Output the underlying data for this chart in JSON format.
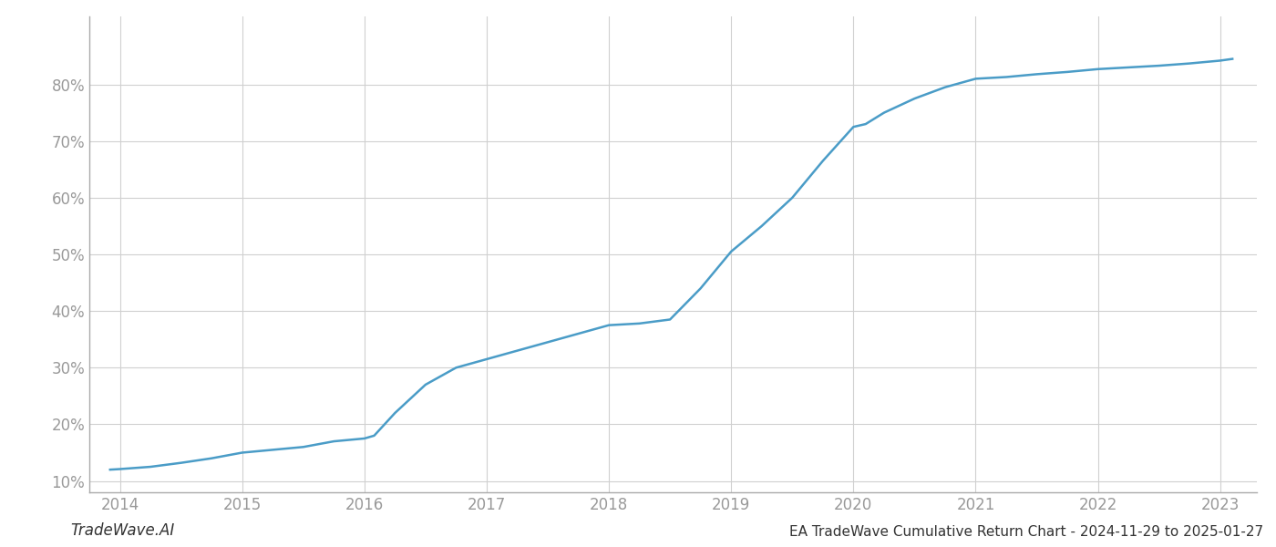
{
  "x_years": [
    2013.92,
    2014.0,
    2014.25,
    2014.5,
    2014.75,
    2015.0,
    2015.25,
    2015.5,
    2015.75,
    2016.0,
    2016.08,
    2016.25,
    2016.5,
    2016.75,
    2017.0,
    2017.25,
    2017.5,
    2017.75,
    2018.0,
    2018.25,
    2018.5,
    2018.75,
    2019.0,
    2019.25,
    2019.5,
    2019.75,
    2020.0,
    2020.1,
    2020.25,
    2020.5,
    2020.75,
    2021.0,
    2021.25,
    2021.5,
    2021.75,
    2022.0,
    2022.25,
    2022.5,
    2022.75,
    2023.0,
    2023.1
  ],
  "y_values": [
    12.0,
    12.1,
    12.5,
    13.2,
    14.0,
    15.0,
    15.5,
    16.0,
    17.0,
    17.5,
    18.0,
    22.0,
    27.0,
    30.0,
    31.5,
    33.0,
    34.5,
    36.0,
    37.5,
    37.8,
    38.5,
    44.0,
    50.5,
    55.0,
    60.0,
    66.5,
    72.5,
    73.0,
    75.0,
    77.5,
    79.5,
    81.0,
    81.3,
    81.8,
    82.2,
    82.7,
    83.0,
    83.3,
    83.7,
    84.2,
    84.5
  ],
  "line_color": "#4a9cc7",
  "line_width": 1.8,
  "background_color": "#ffffff",
  "grid_color": "#d0d0d0",
  "title": "EA TradeWave Cumulative Return Chart - 2024-11-29 to 2025-01-27",
  "watermark": "TradeWave.AI",
  "xlim": [
    2013.75,
    2023.3
  ],
  "ylim": [
    8,
    92
  ],
  "xticks": [
    2014,
    2015,
    2016,
    2017,
    2018,
    2019,
    2020,
    2021,
    2022,
    2023
  ],
  "yticks": [
    10,
    20,
    30,
    40,
    50,
    60,
    70,
    80
  ],
  "tick_color": "#999999",
  "title_fontsize": 11,
  "tick_fontsize": 12,
  "watermark_fontsize": 12
}
